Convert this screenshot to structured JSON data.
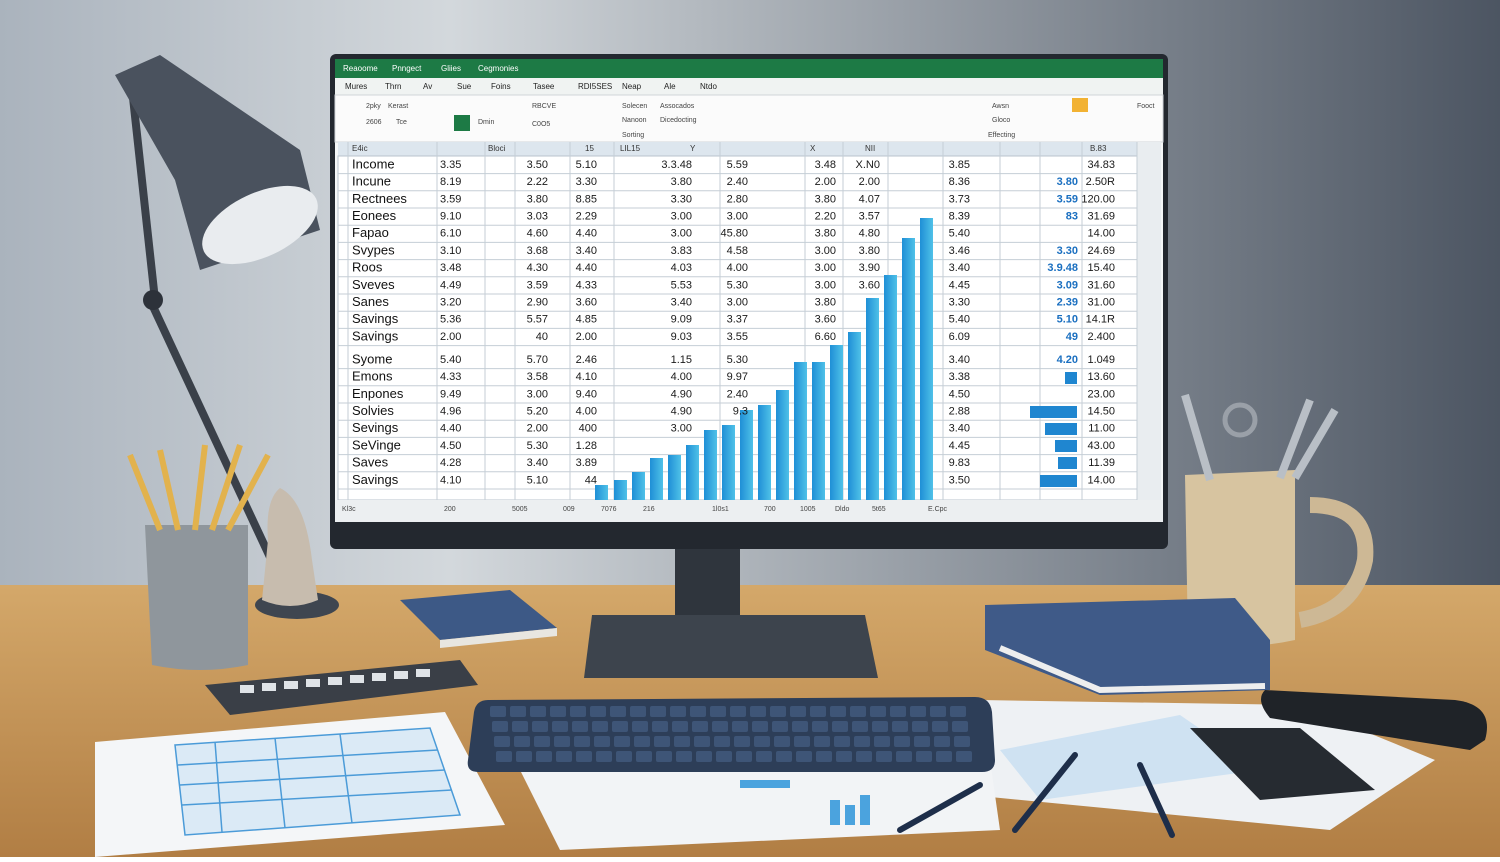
{
  "ribbon": {
    "tabs": [
      "Reaoome",
      "Pnngect",
      "Gliies",
      "Cegmonies"
    ],
    "menu": [
      "Mures",
      "Thrn",
      "Av",
      "Sue",
      "Foins",
      "Tasee",
      "RDI5SES",
      "Neap",
      "Ale",
      "Ntdo"
    ],
    "tools": [
      "2pky",
      "Kerast",
      "2606",
      "Tce",
      "Dmin",
      "RBCVE",
      "C0O5",
      "Solecen",
      "Nanoon",
      "Sorting",
      "Assocados",
      "Dicedocting",
      "Awsn",
      "Gloco",
      "Effecting",
      "Fooct"
    ]
  },
  "sheet": {
    "header": [
      "E4ic",
      "Bloci",
      "15",
      "LIL15",
      "Y",
      "X",
      "NII",
      "B.83"
    ],
    "rows": [
      {
        "label": "Income",
        "cells": [
          "3.35",
          "3.50",
          "5.10",
          "3.3.48",
          "5.59",
          "3.48",
          "X.N0",
          "3.85",
          null,
          "34.83"
        ]
      },
      {
        "label": "Incune",
        "cells": [
          "8.19",
          "2.22",
          "3.30",
          "3.80",
          "2.40",
          "2.00",
          "2.00",
          "8.36",
          "3.80",
          "2.50R"
        ]
      },
      {
        "label": "Rectnees",
        "cells": [
          "3.59",
          "3.80",
          "8.85",
          "3.30",
          "2.80",
          "3.80",
          "4.07",
          "3.73",
          "3.59",
          "120.00"
        ]
      },
      {
        "label": "Eonees",
        "cells": [
          "9.10",
          "3.03",
          "2.29",
          "3.00",
          "3.00",
          "2.20",
          "3.57",
          "8.39",
          "83",
          "31.69"
        ]
      },
      {
        "label": "Fapao",
        "cells": [
          "6.10",
          "4.60",
          "4.40",
          "3.00",
          "45.80",
          "3.80",
          "4.80",
          "5.40",
          null,
          "14.00"
        ]
      },
      {
        "label": "Svypes",
        "cells": [
          "3.10",
          "3.68",
          "3.40",
          "3.83",
          "4.58",
          "3.00",
          "3.80",
          "3.46",
          "3.30",
          "24.69"
        ]
      },
      {
        "label": "Roos",
        "cells": [
          "3.48",
          "4.30",
          "4.40",
          "4.03",
          "4.00",
          "3.00",
          "3.90",
          "3.40",
          "3.9.48",
          "15.40"
        ]
      },
      {
        "label": "Sveves",
        "cells": [
          "4.49",
          "3.59",
          "4.33",
          "5.53",
          "5.30",
          "3.00",
          "3.60",
          "4.45",
          "3.09",
          "31.60"
        ]
      },
      {
        "label": "Sanes",
        "cells": [
          "3.20",
          "2.90",
          "3.60",
          "3.40",
          "3.00",
          "3.80",
          null,
          "3.30",
          "2.39",
          "31.00"
        ]
      },
      {
        "label": "Savings",
        "cells": [
          "5.36",
          "5.57",
          "4.85",
          "9.09",
          "3.37",
          "3.60",
          null,
          "5.40",
          "5.10",
          "14.1R"
        ]
      },
      {
        "label": "Savings",
        "cells": [
          "2.00",
          "40",
          "2.00",
          "9.03",
          "3.55",
          "6.60",
          null,
          "6.09",
          "49",
          "2.400"
        ]
      },
      {
        "label": "Syome",
        "cells": [
          "5.40",
          "5.70",
          "2.46",
          "1.15",
          "5.30",
          null,
          null,
          "3.40",
          "4.20",
          "1.049"
        ]
      },
      {
        "label": "Emons",
        "cells": [
          "4.33",
          "3.58",
          "4.10",
          "4.00",
          "9.97",
          null,
          null,
          "3.38",
          null,
          "13.60"
        ]
      },
      {
        "label": "Enpones",
        "cells": [
          "9.49",
          "3.00",
          "9.40",
          "4.90",
          "2.40",
          null,
          null,
          "4.50",
          null,
          "23.00"
        ]
      },
      {
        "label": "Solvies",
        "cells": [
          "4.96",
          "5.20",
          "4.00",
          "4.90",
          "9.3",
          null,
          null,
          "2.88",
          null,
          "14.50"
        ]
      },
      {
        "label": "Sevings",
        "cells": [
          "4.40",
          "2.00",
          "400",
          "3.00",
          null,
          null,
          null,
          "3.40",
          null,
          "11.00"
        ]
      },
      {
        "label": "SeVinge",
        "cells": [
          "4.50",
          "5.30",
          "1.28",
          null,
          null,
          null,
          null,
          "4.45",
          null,
          "43.00"
        ]
      },
      {
        "label": "Saves",
        "cells": [
          "4.28",
          "3.40",
          "3.89",
          null,
          null,
          null,
          null,
          "9.83",
          null,
          "11.39"
        ]
      },
      {
        "label": "Savings",
        "cells": [
          "4.10",
          "5.10",
          "44",
          null,
          null,
          null,
          null,
          "3.50",
          null,
          "14.00"
        ]
      }
    ],
    "status": [
      "Kl3c",
      "200",
      "5005",
      "009",
      "7076",
      "216",
      "1l0s1",
      "700",
      "1005",
      "Dldo",
      "5t65",
      "E.Cpc"
    ]
  }
}
